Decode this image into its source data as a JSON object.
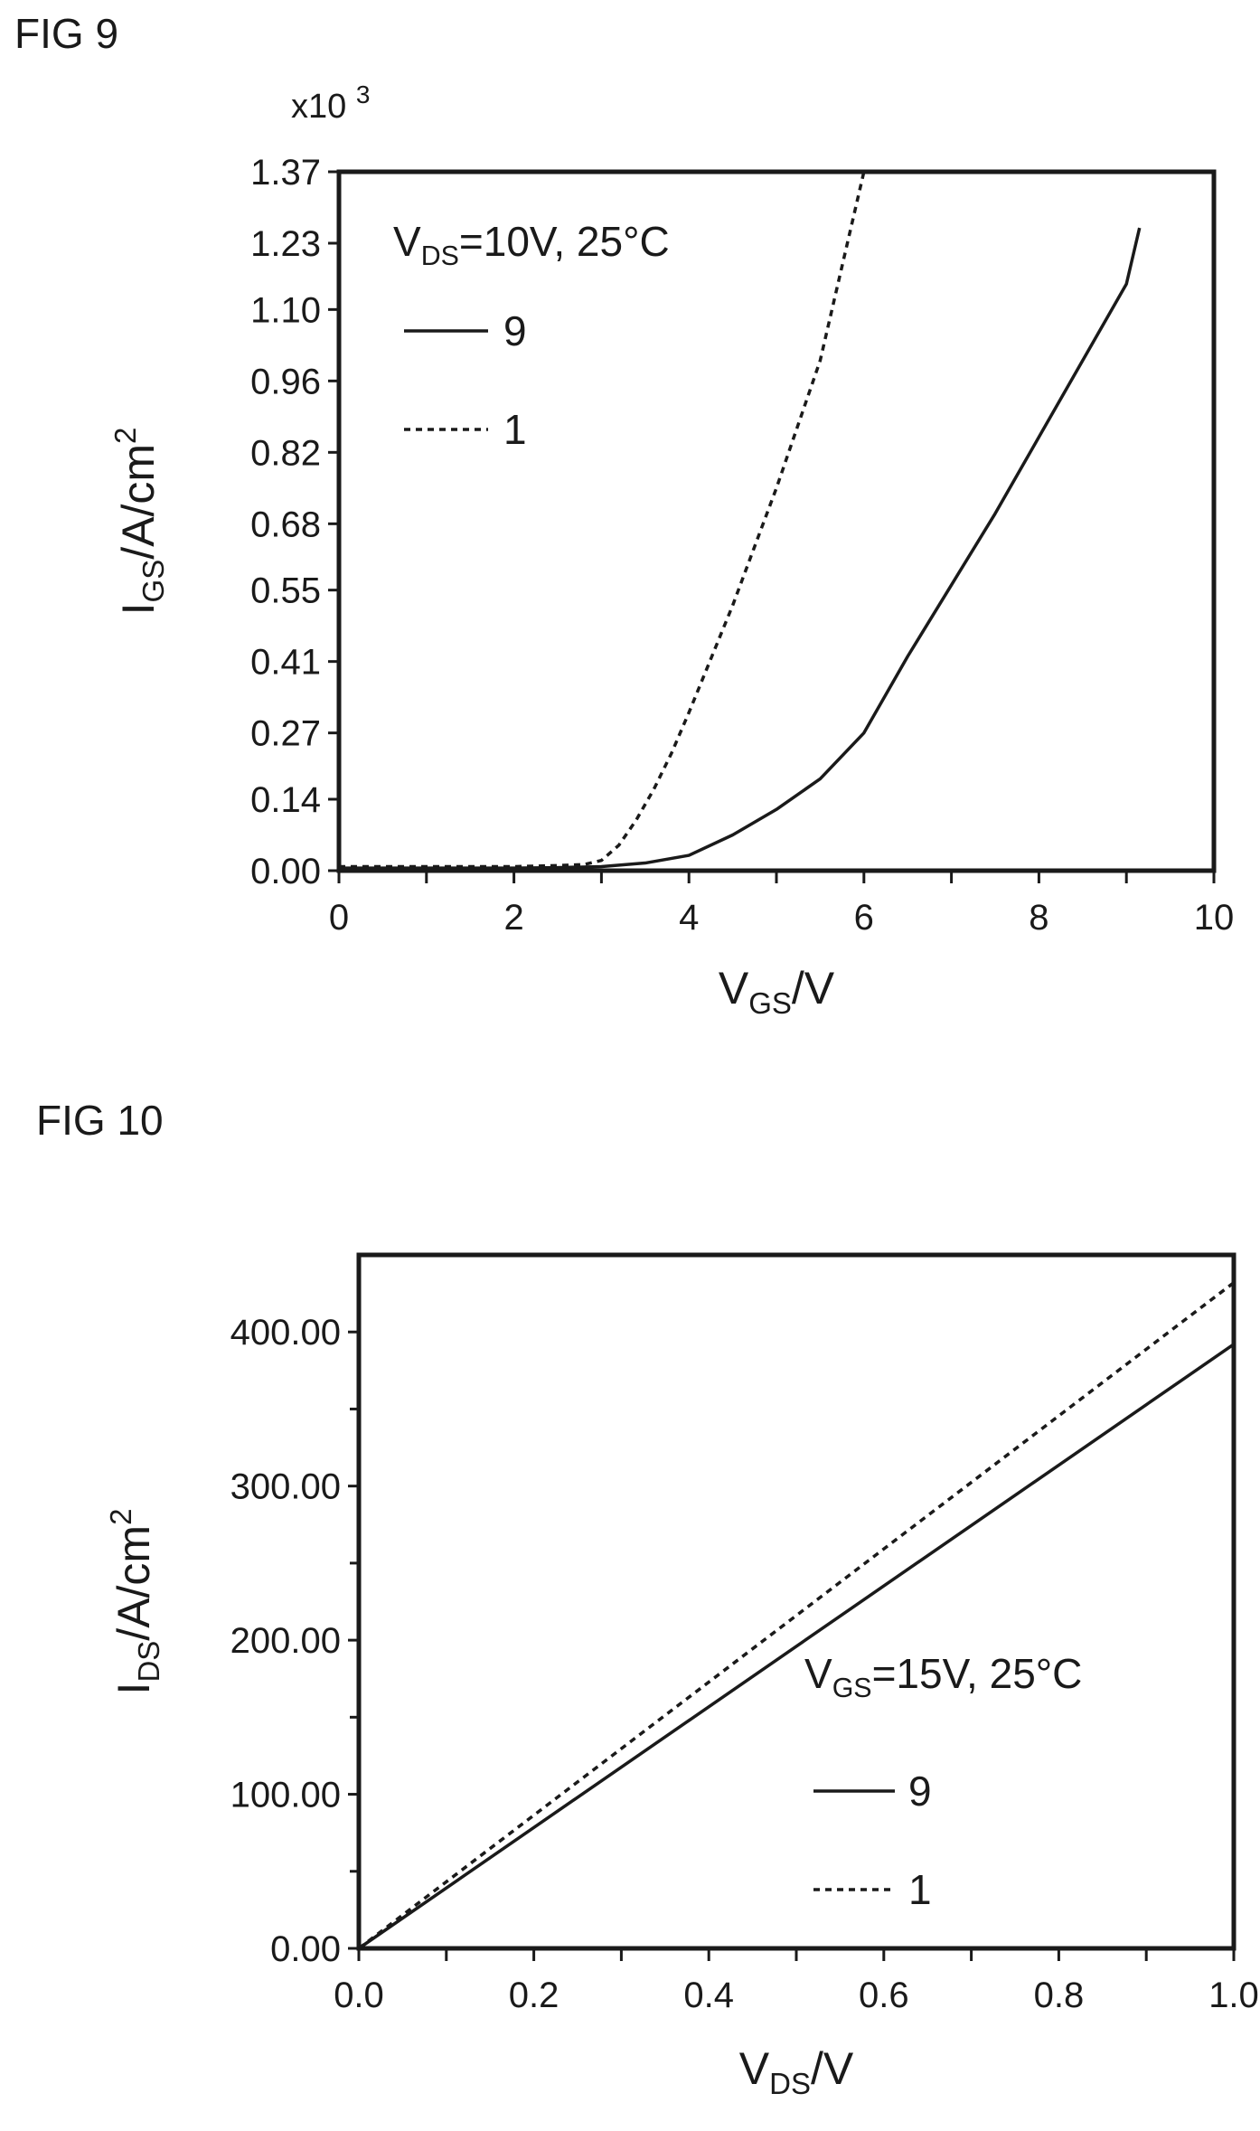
{
  "chart_data": [
    {
      "fig_label": "FIG 9",
      "type": "line",
      "multiplier": "x10",
      "multiplier_exp": "3",
      "xlim": [
        0,
        10
      ],
      "ylim": [
        0,
        1.37
      ],
      "xticks": [
        "0",
        "2",
        "4",
        "6",
        "8",
        "10"
      ],
      "xtick_values": [
        0,
        2,
        4,
        6,
        8,
        10
      ],
      "yticks": [
        "0.00",
        "0.14",
        "0.27",
        "0.41",
        "0.55",
        "0.68",
        "0.82",
        "0.96",
        "1.10",
        "1.23",
        "1.37"
      ],
      "ytick_values": [
        0,
        0.14,
        0.27,
        0.41,
        0.55,
        0.68,
        0.82,
        0.96,
        1.1,
        1.23,
        1.37
      ],
      "xlabel": {
        "main": "V",
        "sub": "GS",
        "rest": "/V"
      },
      "ylabel": {
        "main": "I",
        "sub": "GS",
        "rest": "/A/cm",
        "sup": "2"
      },
      "condition": {
        "main": "V",
        "sub": "DS",
        "rest": "=10V, 25°C"
      },
      "legend_position": "top-left",
      "grid": false,
      "series": [
        {
          "name": "9",
          "style": "solid",
          "x": [
            0,
            1,
            2,
            2.5,
            3,
            3.5,
            4,
            4.5,
            5,
            5.5,
            6,
            6.5,
            7,
            7.5,
            8,
            8.5,
            9,
            9.15
          ],
          "y": [
            0.005,
            0.005,
            0.005,
            0.006,
            0.008,
            0.015,
            0.03,
            0.07,
            0.12,
            0.18,
            0.27,
            0.42,
            0.56,
            0.7,
            0.85,
            1.0,
            1.15,
            1.26
          ]
        },
        {
          "name": "1",
          "style": "dotted",
          "x": [
            0,
            1,
            2,
            2.5,
            2.8,
            3.0,
            3.2,
            3.4,
            3.6,
            3.8,
            4.0,
            4.5,
            5.0,
            5.5,
            6.0
          ],
          "y": [
            0.008,
            0.008,
            0.008,
            0.01,
            0.012,
            0.02,
            0.05,
            0.1,
            0.16,
            0.23,
            0.31,
            0.52,
            0.75,
            1.0,
            1.37
          ]
        }
      ]
    },
    {
      "fig_label": "FIG 10",
      "type": "line",
      "xlim": [
        0,
        1.0
      ],
      "ylim": [
        0,
        450
      ],
      "xticks": [
        "0.0",
        "0.2",
        "0.4",
        "0.6",
        "0.8",
        "1.0"
      ],
      "xtick_values": [
        0,
        0.2,
        0.4,
        0.6,
        0.8,
        1.0
      ],
      "yticks": [
        "0.00",
        "100.00",
        "200.00",
        "300.00",
        "400.00"
      ],
      "ytick_values": [
        0,
        100,
        200,
        300,
        400
      ],
      "xlabel": {
        "main": "V",
        "sub": "DS",
        "rest": "/V"
      },
      "ylabel": {
        "main": "I",
        "sub": "DS",
        "rest": "/A/cm",
        "sup": "2"
      },
      "condition": {
        "main": "V",
        "sub": "GS",
        "rest": "=15V, 25°C"
      },
      "legend_position": "bottom-right",
      "grid": false,
      "series": [
        {
          "name": "9",
          "style": "solid",
          "x": [
            0,
            1.0
          ],
          "y": [
            0,
            392
          ]
        },
        {
          "name": "1",
          "style": "dotted",
          "x": [
            0,
            1.0
          ],
          "y": [
            0,
            432
          ]
        }
      ]
    }
  ]
}
